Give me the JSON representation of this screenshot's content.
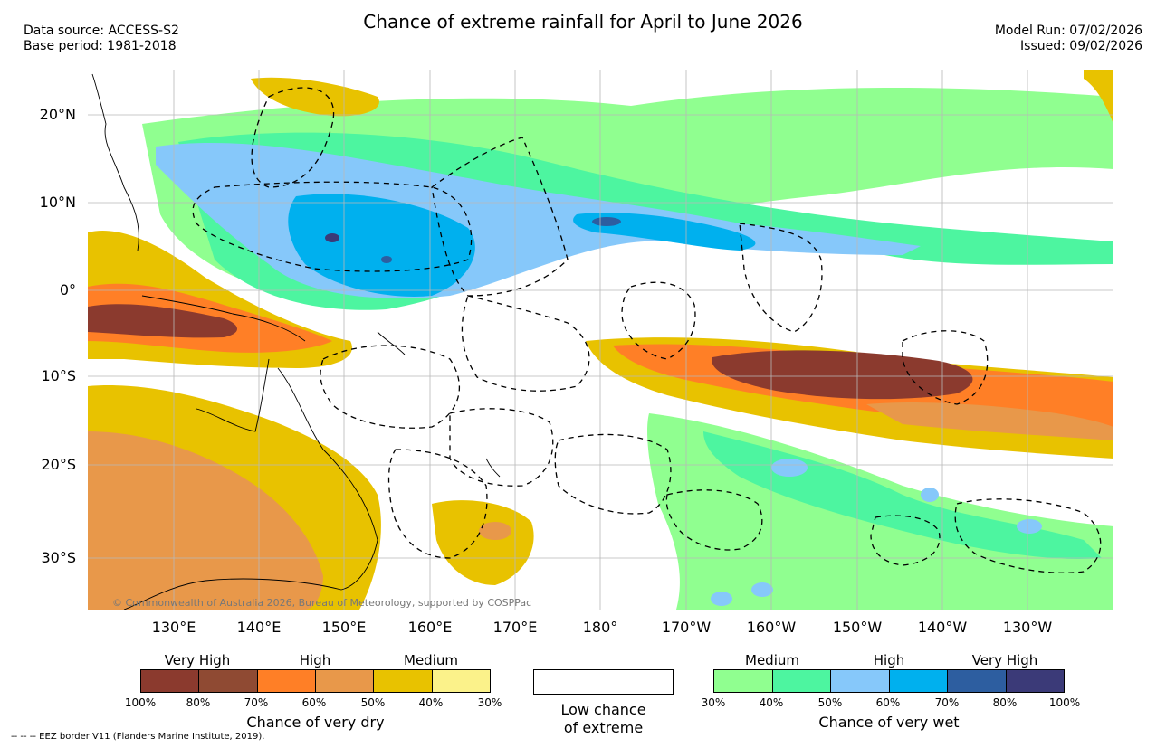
{
  "header": {
    "title": "Chance of extreme rainfall for April to June 2026",
    "data_source": "Data source: ACCESS-S2",
    "base_period": "Base period: 1981-2018",
    "model_run": "Model Run: 07/02/2026",
    "issued": "Issued: 09/02/2026"
  },
  "map": {
    "lat_labels": [
      "20°N",
      "10°N",
      "0°",
      "10°S",
      "20°S",
      "30°S"
    ],
    "lon_labels": [
      "130°E",
      "140°E",
      "150°E",
      "160°E",
      "170°E",
      "180°",
      "170°W",
      "160°W",
      "150°W",
      "140°W",
      "130°W"
    ],
    "copyright": "© Commonwealth of Australia 2026, Bureau of Meteorology, supported by COSPPac"
  },
  "legend": {
    "dry": {
      "categories": [
        "Very High",
        "High",
        "Medium"
      ],
      "ticks": [
        "100%",
        "80%",
        "70%",
        "60%",
        "50%",
        "40%",
        "30%"
      ],
      "colors": [
        "#8b3a2e",
        "#8f4a33",
        "#ff7f26",
        "#e8984a",
        "#e8c200",
        "#fbf28a"
      ],
      "title": "Chance of very dry"
    },
    "low": {
      "line1": "Low chance",
      "line2": "of extreme"
    },
    "wet": {
      "categories": [
        "Medium",
        "High",
        "Very High"
      ],
      "ticks": [
        "30%",
        "40%",
        "50%",
        "60%",
        "70%",
        "80%",
        "100%"
      ],
      "colors": [
        "#90ff90",
        "#4df5a0",
        "#86c8fa",
        "#00b0ee",
        "#2d5ea0",
        "#3b3a78"
      ],
      "title": "Chance of very wet"
    }
  },
  "footnote": "-- -- -- EEZ border V11 (Flanders Marine Institute, 2019)."
}
